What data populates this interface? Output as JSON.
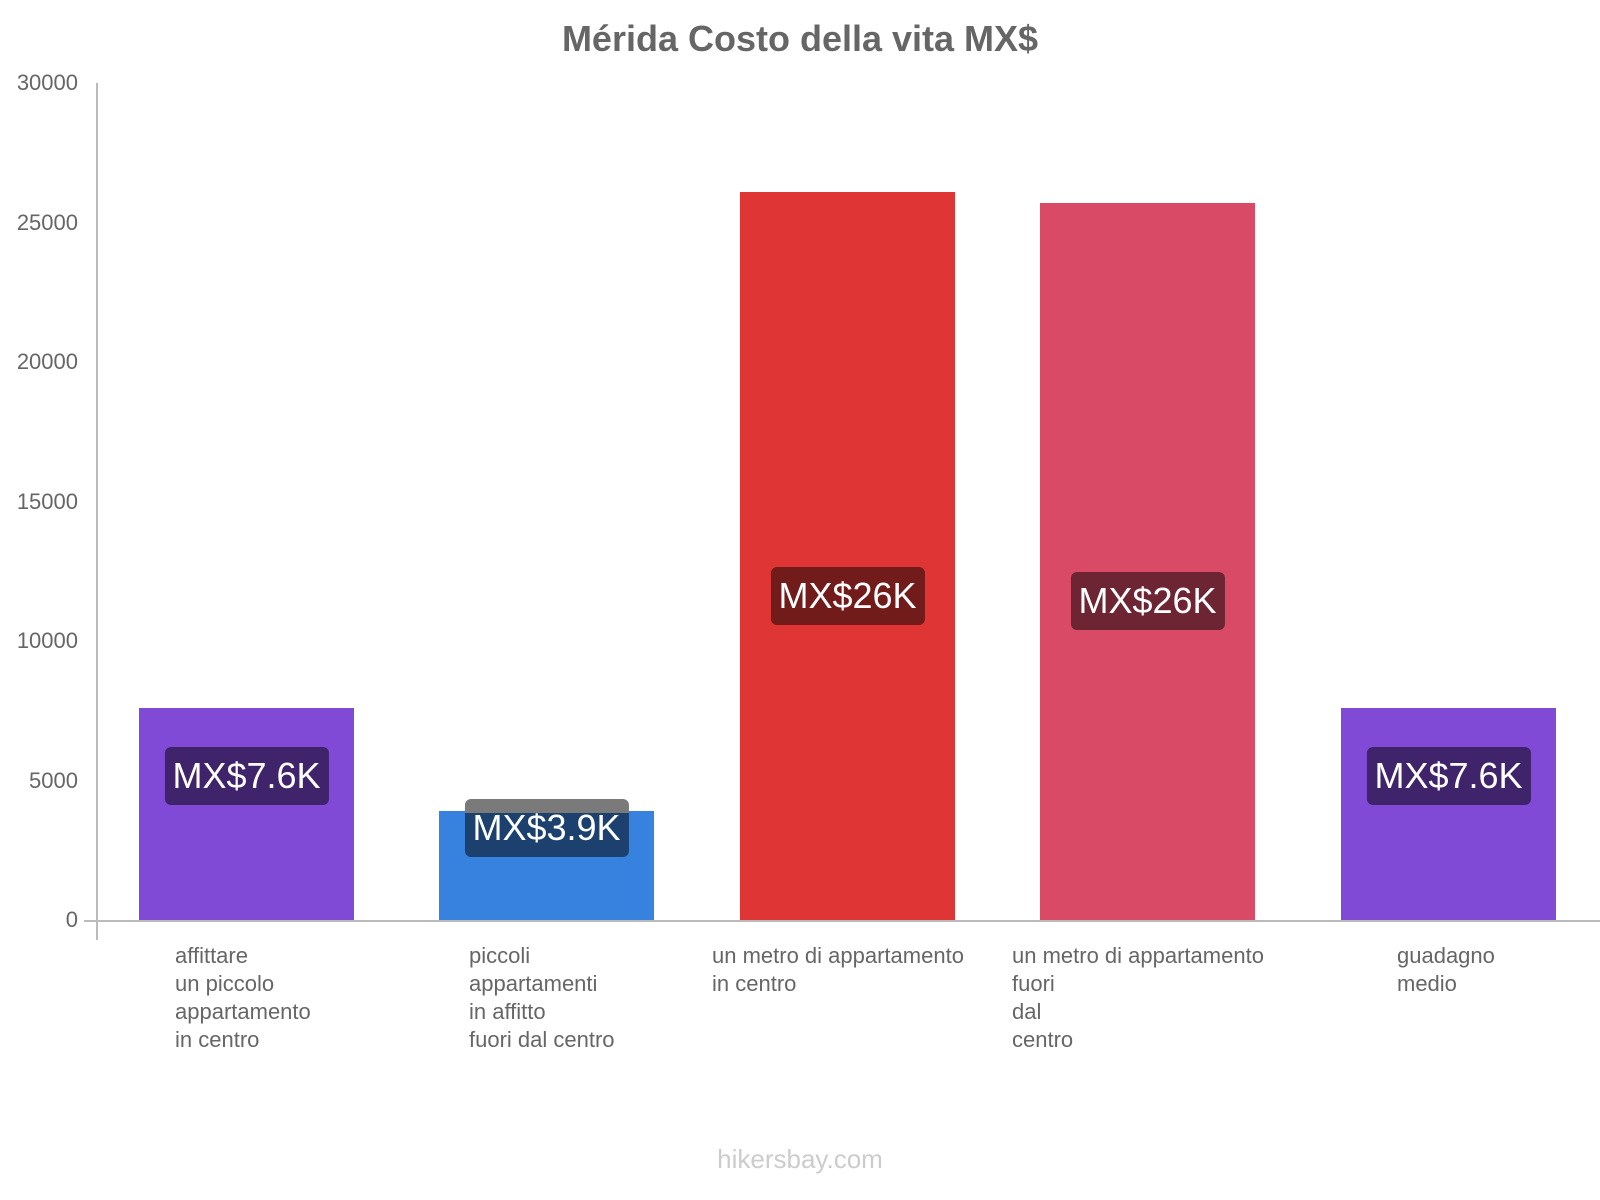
{
  "chart_data": {
    "type": "bar",
    "title": "Mérida Costo della vita MX$",
    "xlabel": "",
    "ylabel": "",
    "ylim": [
      0,
      30000
    ],
    "yticks": [
      0,
      5000,
      10000,
      15000,
      20000,
      25000,
      30000
    ],
    "grid": false,
    "legend": null,
    "categories": [
      "affittare un piccolo appartamento in centro",
      "piccoli appartamenti in affitto fuori dal centro",
      "un metro di appartamento in centro",
      "un metro di appartamento fuori dal centro",
      "guadagno medio"
    ],
    "values": [
      7600,
      3900,
      26100,
      25700,
      7600
    ],
    "data_labels": [
      "MX$7.6K",
      "MX$3.9K",
      "MX$26K",
      "MX$26K",
      "MX$7.6K"
    ],
    "colors": [
      "#8049d6",
      "#3682de",
      "#e03535",
      "#d94a67",
      "#8049d6"
    ],
    "label_bg_colors": [
      "#40246b",
      "#1c416f",
      "#711b1b",
      "#6d2534",
      "#40246b"
    ]
  },
  "title": "Mérida Costo della vita MX$",
  "y_ticks": [
    "30000",
    "25000",
    "20000",
    "15000",
    "10000",
    "5000",
    "0"
  ],
  "category_labels": [
    "affittare\nun piccolo\nappartamento\nin centro",
    "piccoli\nappartamenti\nin affitto\nfuori dal centro",
    "un metro di appartamento\nin centro",
    "un metro di appartamento\nfuori\ndal\ncentro",
    "guadagno\nmedio"
  ],
  "watermark": "hikersbay.com"
}
